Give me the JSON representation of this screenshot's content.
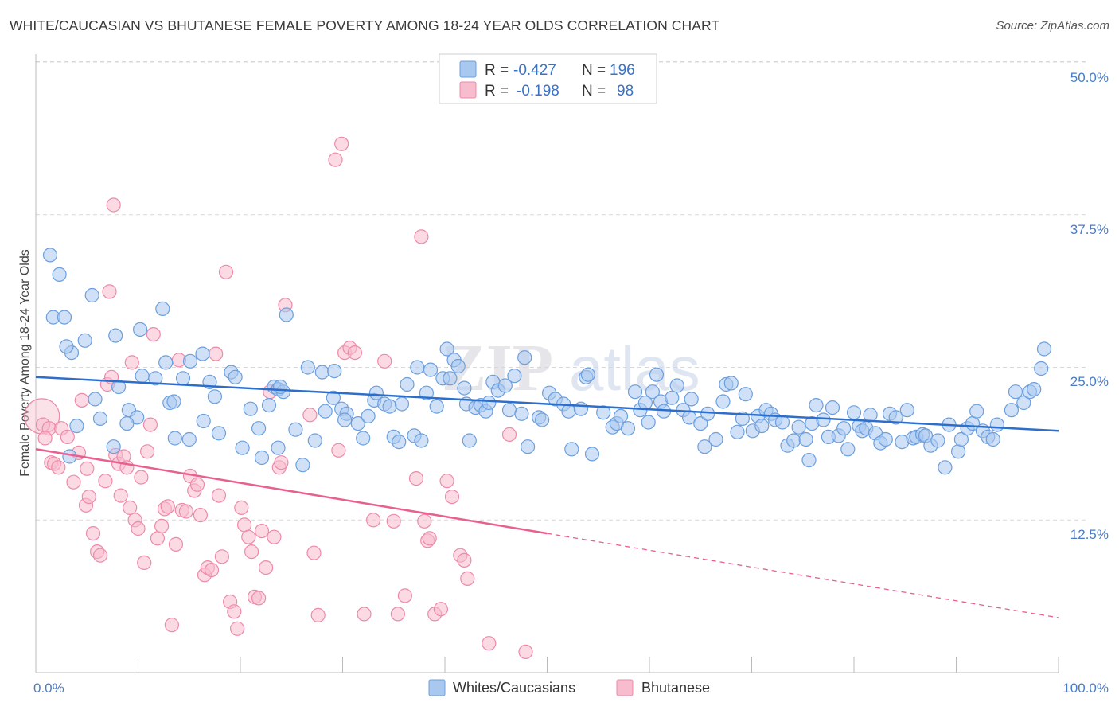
{
  "title": "WHITE/CAUCASIAN VS BHUTANESE FEMALE POVERTY AMONG 18-24 YEAR OLDS CORRELATION CHART",
  "source": "Source: ZipAtlas.com",
  "watermark": {
    "zip": "ZIP",
    "atlas": "atlas"
  },
  "colors": {
    "blue_fill": "#a9c8f0",
    "blue_stroke": "#6b9fde",
    "blue_line": "#2c6ecb",
    "pink_fill": "#f7bccd",
    "pink_stroke": "#ee8aa9",
    "pink_line": "#e8608f",
    "tick_label": "#4a7cc7",
    "grid": "#d8d8d8"
  },
  "legend": {
    "rows": [
      {
        "r_label": "R = ",
        "r_value": "-0.427",
        "n_label": "N = ",
        "n_value": "196",
        "color": "blue"
      },
      {
        "r_label": "R = ",
        "r_value": "-0.198",
        "n_label": "N = ",
        "n_value": "98",
        "color": "pink"
      }
    ]
  },
  "bottom_legend": [
    {
      "label": "Whites/Caucasians",
      "color": "blue"
    },
    {
      "label": "Bhutanese",
      "color": "pink"
    }
  ],
  "chart_data": {
    "type": "scatter",
    "title": "WHITE/CAUCASIAN VS BHUTANESE FEMALE POVERTY AMONG 18-24 YEAR OLDS CORRELATION CHART",
    "xlabel": "",
    "ylabel": "Female Poverty Among 18-24 Year Olds",
    "xlim": [
      0,
      100
    ],
    "ylim": [
      0,
      50
    ],
    "x_tick_labels": [
      "0.0%",
      "100.0%"
    ],
    "y_ticks": [
      12.5,
      25.0,
      37.5,
      50.0
    ],
    "y_tick_labels": [
      "12.5%",
      "25.0%",
      "37.5%",
      "50.0%"
    ],
    "grid": "horizontal dashed",
    "legend_position": "top-center",
    "series": [
      {
        "name": "Whites/Caucasians",
        "color": "blue",
        "trend": {
          "x": [
            0,
            100
          ],
          "y": [
            24.2,
            19.8
          ],
          "style": "solid"
        },
        "points": [
          [
            1.4,
            34.2
          ],
          [
            2.3,
            32.6
          ],
          [
            1.7,
            29.1
          ],
          [
            2.8,
            29.1
          ],
          [
            3.5,
            26.2
          ],
          [
            4.8,
            27.2
          ],
          [
            3.0,
            26.7
          ],
          [
            5.5,
            30.9
          ],
          [
            7.8,
            27.6
          ],
          [
            10.2,
            28.1
          ],
          [
            12.4,
            29.8
          ],
          [
            10.4,
            24.3
          ],
          [
            11.7,
            24.1
          ],
          [
            12.7,
            25.4
          ],
          [
            15.1,
            25.5
          ],
          [
            16.3,
            26.1
          ],
          [
            14.4,
            24.1
          ],
          [
            17.0,
            23.8
          ],
          [
            19.1,
            24.6
          ],
          [
            19.5,
            24.2
          ],
          [
            8.1,
            23.4
          ],
          [
            5.8,
            22.4
          ],
          [
            6.3,
            20.8
          ],
          [
            4.0,
            20.2
          ],
          [
            7.6,
            18.5
          ],
          [
            9.1,
            21.5
          ],
          [
            9.9,
            20.9
          ],
          [
            8.9,
            20.4
          ],
          [
            13.1,
            22.1
          ],
          [
            13.5,
            22.2
          ],
          [
            17.5,
            22.6
          ],
          [
            16.4,
            20.6
          ],
          [
            15.0,
            19.1
          ],
          [
            13.6,
            19.2
          ],
          [
            17.9,
            19.6
          ],
          [
            21.0,
            21.6
          ],
          [
            21.8,
            20.0
          ],
          [
            22.1,
            17.6
          ],
          [
            20.2,
            18.4
          ],
          [
            22.8,
            21.9
          ],
          [
            23.3,
            23.4
          ],
          [
            23.7,
            23.2
          ],
          [
            24.2,
            23.0
          ],
          [
            23.9,
            23.4
          ],
          [
            24.5,
            29.3
          ],
          [
            23.7,
            18.4
          ],
          [
            25.4,
            19.9
          ],
          [
            26.1,
            17.0
          ],
          [
            26.6,
            25.0
          ],
          [
            27.3,
            19.0
          ],
          [
            28.0,
            24.6
          ],
          [
            28.3,
            21.4
          ],
          [
            29.1,
            22.5
          ],
          [
            29.2,
            24.7
          ],
          [
            29.9,
            21.6
          ],
          [
            30.4,
            21.2
          ],
          [
            30.2,
            20.7
          ],
          [
            31.5,
            20.4
          ],
          [
            32.0,
            19.2
          ],
          [
            32.5,
            21.0
          ],
          [
            33.1,
            22.3
          ],
          [
            33.3,
            22.9
          ],
          [
            34.1,
            22.0
          ],
          [
            34.6,
            21.8
          ],
          [
            35.0,
            19.3
          ],
          [
            35.5,
            18.9
          ],
          [
            35.8,
            22.0
          ],
          [
            36.3,
            23.6
          ],
          [
            37.0,
            19.4
          ],
          [
            37.7,
            19.0
          ],
          [
            37.3,
            25.0
          ],
          [
            38.2,
            22.9
          ],
          [
            38.6,
            24.8
          ],
          [
            39.2,
            21.8
          ],
          [
            39.8,
            24.1
          ],
          [
            40.2,
            26.5
          ],
          [
            40.5,
            24.1
          ],
          [
            40.9,
            25.6
          ],
          [
            41.3,
            25.1
          ],
          [
            41.9,
            23.3
          ],
          [
            42.1,
            22.0
          ],
          [
            42.4,
            19.0
          ],
          [
            43.0,
            21.7
          ],
          [
            43.5,
            21.9
          ],
          [
            44.0,
            21.4
          ],
          [
            44.3,
            22.1
          ],
          [
            44.7,
            23.8
          ],
          [
            45.2,
            23.1
          ],
          [
            45.9,
            23.5
          ],
          [
            46.3,
            21.5
          ],
          [
            46.8,
            24.3
          ],
          [
            47.5,
            21.2
          ],
          [
            47.8,
            25.8
          ],
          [
            48.1,
            18.5
          ],
          [
            49.2,
            20.9
          ],
          [
            49.5,
            20.7
          ],
          [
            50.2,
            22.9
          ],
          [
            50.8,
            22.4
          ],
          [
            51.6,
            22.0
          ],
          [
            52.1,
            21.4
          ],
          [
            52.4,
            18.3
          ],
          [
            53.3,
            21.6
          ],
          [
            53.8,
            24.2
          ],
          [
            54.0,
            24.4
          ],
          [
            54.4,
            17.9
          ],
          [
            55.5,
            21.3
          ],
          [
            56.4,
            20.1
          ],
          [
            56.8,
            20.4
          ],
          [
            57.2,
            21.0
          ],
          [
            57.9,
            20.0
          ],
          [
            58.6,
            23.0
          ],
          [
            59.1,
            21.5
          ],
          [
            59.6,
            22.1
          ],
          [
            59.9,
            20.5
          ],
          [
            60.3,
            23.0
          ],
          [
            60.7,
            24.4
          ],
          [
            61.1,
            22.2
          ],
          [
            61.4,
            21.4
          ],
          [
            62.2,
            22.5
          ],
          [
            62.7,
            23.5
          ],
          [
            63.3,
            21.5
          ],
          [
            63.9,
            20.9
          ],
          [
            64.1,
            22.4
          ],
          [
            65.0,
            20.4
          ],
          [
            65.4,
            18.5
          ],
          [
            65.7,
            21.2
          ],
          [
            66.5,
            19.1
          ],
          [
            67.2,
            22.2
          ],
          [
            67.5,
            23.6
          ],
          [
            68.0,
            23.7
          ],
          [
            68.6,
            19.7
          ],
          [
            69.1,
            20.8
          ],
          [
            69.4,
            22.8
          ],
          [
            70.1,
            19.8
          ],
          [
            70.6,
            21.0
          ],
          [
            71.0,
            20.2
          ],
          [
            71.4,
            21.5
          ],
          [
            71.9,
            21.2
          ],
          [
            72.3,
            20.7
          ],
          [
            73.0,
            20.5
          ],
          [
            73.5,
            18.6
          ],
          [
            74.1,
            19.0
          ],
          [
            74.6,
            20.1
          ],
          [
            75.3,
            19.1
          ],
          [
            75.6,
            17.4
          ],
          [
            75.9,
            20.4
          ],
          [
            76.3,
            21.9
          ],
          [
            77.0,
            20.7
          ],
          [
            77.5,
            19.3
          ],
          [
            77.9,
            21.7
          ],
          [
            78.5,
            19.4
          ],
          [
            79.0,
            20.0
          ],
          [
            79.4,
            18.3
          ],
          [
            80.0,
            21.3
          ],
          [
            80.5,
            20.2
          ],
          [
            80.8,
            19.8
          ],
          [
            81.2,
            20.0
          ],
          [
            81.6,
            21.1
          ],
          [
            82.1,
            19.6
          ],
          [
            82.6,
            18.8
          ],
          [
            83.1,
            19.1
          ],
          [
            83.5,
            21.2
          ],
          [
            84.1,
            20.9
          ],
          [
            84.7,
            18.9
          ],
          [
            85.2,
            21.5
          ],
          [
            85.8,
            19.2
          ],
          [
            86.1,
            19.3
          ],
          [
            86.7,
            19.5
          ],
          [
            87.0,
            19.4
          ],
          [
            87.5,
            18.6
          ],
          [
            88.2,
            19.0
          ],
          [
            88.9,
            16.8
          ],
          [
            89.3,
            20.3
          ],
          [
            90.2,
            18.1
          ],
          [
            90.5,
            19.1
          ],
          [
            91.1,
            20.0
          ],
          [
            91.6,
            20.4
          ],
          [
            92.0,
            21.4
          ],
          [
            92.6,
            19.8
          ],
          [
            93.1,
            19.3
          ],
          [
            93.6,
            19.1
          ],
          [
            94.0,
            20.3
          ],
          [
            95.4,
            21.5
          ],
          [
            95.8,
            23.0
          ],
          [
            96.6,
            22.1
          ],
          [
            97.2,
            23.0
          ],
          [
            97.6,
            23.2
          ],
          [
            98.3,
            24.9
          ],
          [
            98.6,
            26.5
          ],
          [
            3.3,
            17.7
          ]
        ]
      },
      {
        "name": "Bhutanese",
        "color": "pink",
        "trend": {
          "x": [
            0,
            50
          ],
          "y": [
            18.3,
            11.4
          ],
          "style": "solid",
          "extension": {
            "x": [
              50,
              100
            ],
            "y": [
              11.4,
              4.5
            ],
            "style": "dashed"
          }
        },
        "points": [
          [
            0.6,
            21.0
          ],
          [
            0.7,
            20.3
          ],
          [
            1.3,
            20.0
          ],
          [
            0.9,
            19.2
          ],
          [
            1.5,
            17.2
          ],
          [
            1.8,
            17.1
          ],
          [
            2.2,
            16.8
          ],
          [
            2.5,
            20.0
          ],
          [
            3.1,
            19.3
          ],
          [
            3.7,
            15.6
          ],
          [
            4.2,
            18.0
          ],
          [
            4.5,
            22.3
          ],
          [
            5.0,
            16.7
          ],
          [
            4.9,
            13.7
          ],
          [
            5.2,
            14.4
          ],
          [
            5.6,
            11.4
          ],
          [
            6.0,
            9.9
          ],
          [
            6.3,
            9.6
          ],
          [
            6.8,
            15.7
          ],
          [
            7.0,
            23.6
          ],
          [
            7.2,
            31.2
          ],
          [
            7.4,
            24.2
          ],
          [
            7.6,
            38.3
          ],
          [
            7.8,
            17.8
          ],
          [
            8.1,
            17.1
          ],
          [
            8.3,
            14.5
          ],
          [
            8.6,
            17.7
          ],
          [
            8.9,
            16.8
          ],
          [
            9.2,
            13.5
          ],
          [
            9.4,
            25.4
          ],
          [
            9.7,
            12.5
          ],
          [
            10.0,
            11.8
          ],
          [
            10.3,
            16.0
          ],
          [
            10.6,
            9.0
          ],
          [
            10.9,
            18.1
          ],
          [
            11.2,
            20.3
          ],
          [
            11.5,
            27.7
          ],
          [
            11.9,
            11.0
          ],
          [
            12.3,
            12.0
          ],
          [
            12.6,
            13.4
          ],
          [
            12.9,
            13.6
          ],
          [
            13.3,
            3.9
          ],
          [
            13.7,
            10.5
          ],
          [
            14.0,
            25.6
          ],
          [
            14.3,
            13.3
          ],
          [
            14.7,
            13.2
          ],
          [
            15.1,
            16.1
          ],
          [
            15.5,
            14.9
          ],
          [
            15.8,
            15.4
          ],
          [
            16.1,
            12.9
          ],
          [
            16.5,
            8.0
          ],
          [
            16.8,
            8.6
          ],
          [
            17.2,
            8.4
          ],
          [
            17.6,
            26.1
          ],
          [
            17.9,
            14.5
          ],
          [
            18.2,
            9.5
          ],
          [
            18.6,
            32.8
          ],
          [
            19.0,
            5.8
          ],
          [
            19.4,
            5.0
          ],
          [
            19.7,
            3.6
          ],
          [
            20.1,
            13.5
          ],
          [
            20.4,
            12.1
          ],
          [
            20.8,
            11.1
          ],
          [
            21.1,
            9.9
          ],
          [
            21.4,
            6.2
          ],
          [
            21.8,
            6.1
          ],
          [
            22.1,
            11.6
          ],
          [
            22.5,
            8.6
          ],
          [
            22.9,
            23.0
          ],
          [
            23.3,
            11.1
          ],
          [
            23.8,
            16.8
          ],
          [
            24.0,
            17.2
          ],
          [
            24.4,
            30.1
          ],
          [
            26.8,
            21.1
          ],
          [
            27.2,
            9.8
          ],
          [
            27.6,
            4.7
          ],
          [
            29.3,
            42.0
          ],
          [
            29.6,
            18.2
          ],
          [
            29.9,
            43.3
          ],
          [
            30.2,
            26.2
          ],
          [
            30.7,
            26.6
          ],
          [
            31.2,
            26.2
          ],
          [
            32.1,
            4.8
          ],
          [
            33.0,
            12.5
          ],
          [
            34.1,
            25.5
          ],
          [
            35.0,
            12.4
          ],
          [
            35.4,
            4.8
          ],
          [
            36.1,
            6.3
          ],
          [
            37.2,
            15.9
          ],
          [
            37.7,
            35.7
          ],
          [
            38.0,
            12.4
          ],
          [
            38.3,
            10.8
          ],
          [
            38.5,
            11.0
          ],
          [
            39.0,
            4.8
          ],
          [
            39.6,
            5.2
          ],
          [
            40.2,
            15.7
          ],
          [
            40.7,
            14.4
          ],
          [
            41.5,
            9.6
          ],
          [
            41.9,
            9.2
          ],
          [
            42.2,
            7.7
          ],
          [
            44.3,
            2.4
          ],
          [
            46.3,
            19.5
          ],
          [
            47.9,
            1.7
          ]
        ]
      }
    ]
  }
}
